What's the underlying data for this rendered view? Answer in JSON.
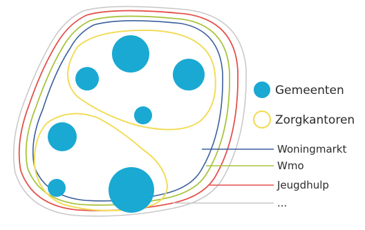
{
  "colors": {
    "background": "#ffffff",
    "gemeenten": "#19a9d3",
    "zorgkantoren": "#f2dc58",
    "woningmarkt": "#3a5f9c",
    "wmo": "#a8c43f",
    "jeugdhulp": "#e3504c",
    "overig": "#c9c9c9",
    "text": "#2b2b2b"
  },
  "legend": {
    "gemeenten_label": "Gemeenten",
    "zorgkantoren_label": "Zorgkantoren"
  },
  "boundary_labels": [
    {
      "key": "woningmarkt",
      "label": "Woningmarkt"
    },
    {
      "key": "wmo",
      "label": "Wmo"
    },
    {
      "key": "jeugdhulp",
      "label": "Jeugdhulp"
    },
    {
      "key": "overig",
      "label": "..."
    }
  ]
}
